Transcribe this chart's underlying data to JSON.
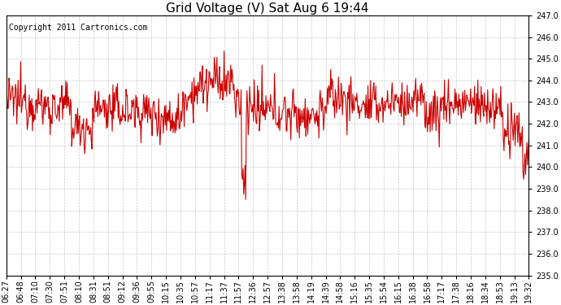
{
  "title": "Grid Voltage (V) Sat Aug 6 19:44",
  "copyright": "Copyright 2011 Cartronics.com",
  "ylim": [
    235.0,
    247.0
  ],
  "yticks": [
    235.0,
    236.0,
    237.0,
    238.0,
    239.0,
    240.0,
    241.0,
    242.0,
    243.0,
    244.0,
    245.0,
    246.0,
    247.0
  ],
  "xtick_labels": [
    "06:27",
    "06:48",
    "07:10",
    "07:30",
    "07:51",
    "08:10",
    "08:31",
    "08:51",
    "09:12",
    "09:36",
    "09:55",
    "10:15",
    "10:35",
    "10:57",
    "11:17",
    "11:37",
    "11:57",
    "12:36",
    "12:57",
    "13:38",
    "13:58",
    "14:19",
    "14:39",
    "14:58",
    "15:16",
    "15:35",
    "15:54",
    "16:15",
    "16:38",
    "16:58",
    "17:17",
    "17:38",
    "18:16",
    "18:34",
    "18:53",
    "19:13",
    "19:32"
  ],
  "line_color": "#cc0000",
  "bg_color": "#ffffff",
  "grid_color": "#bbbbbb",
  "title_fontsize": 11,
  "tick_fontsize": 7,
  "copyright_fontsize": 7,
  "seed": 12345,
  "n_points": 800,
  "base_voltage": 242.7,
  "noise_std": 0.55
}
